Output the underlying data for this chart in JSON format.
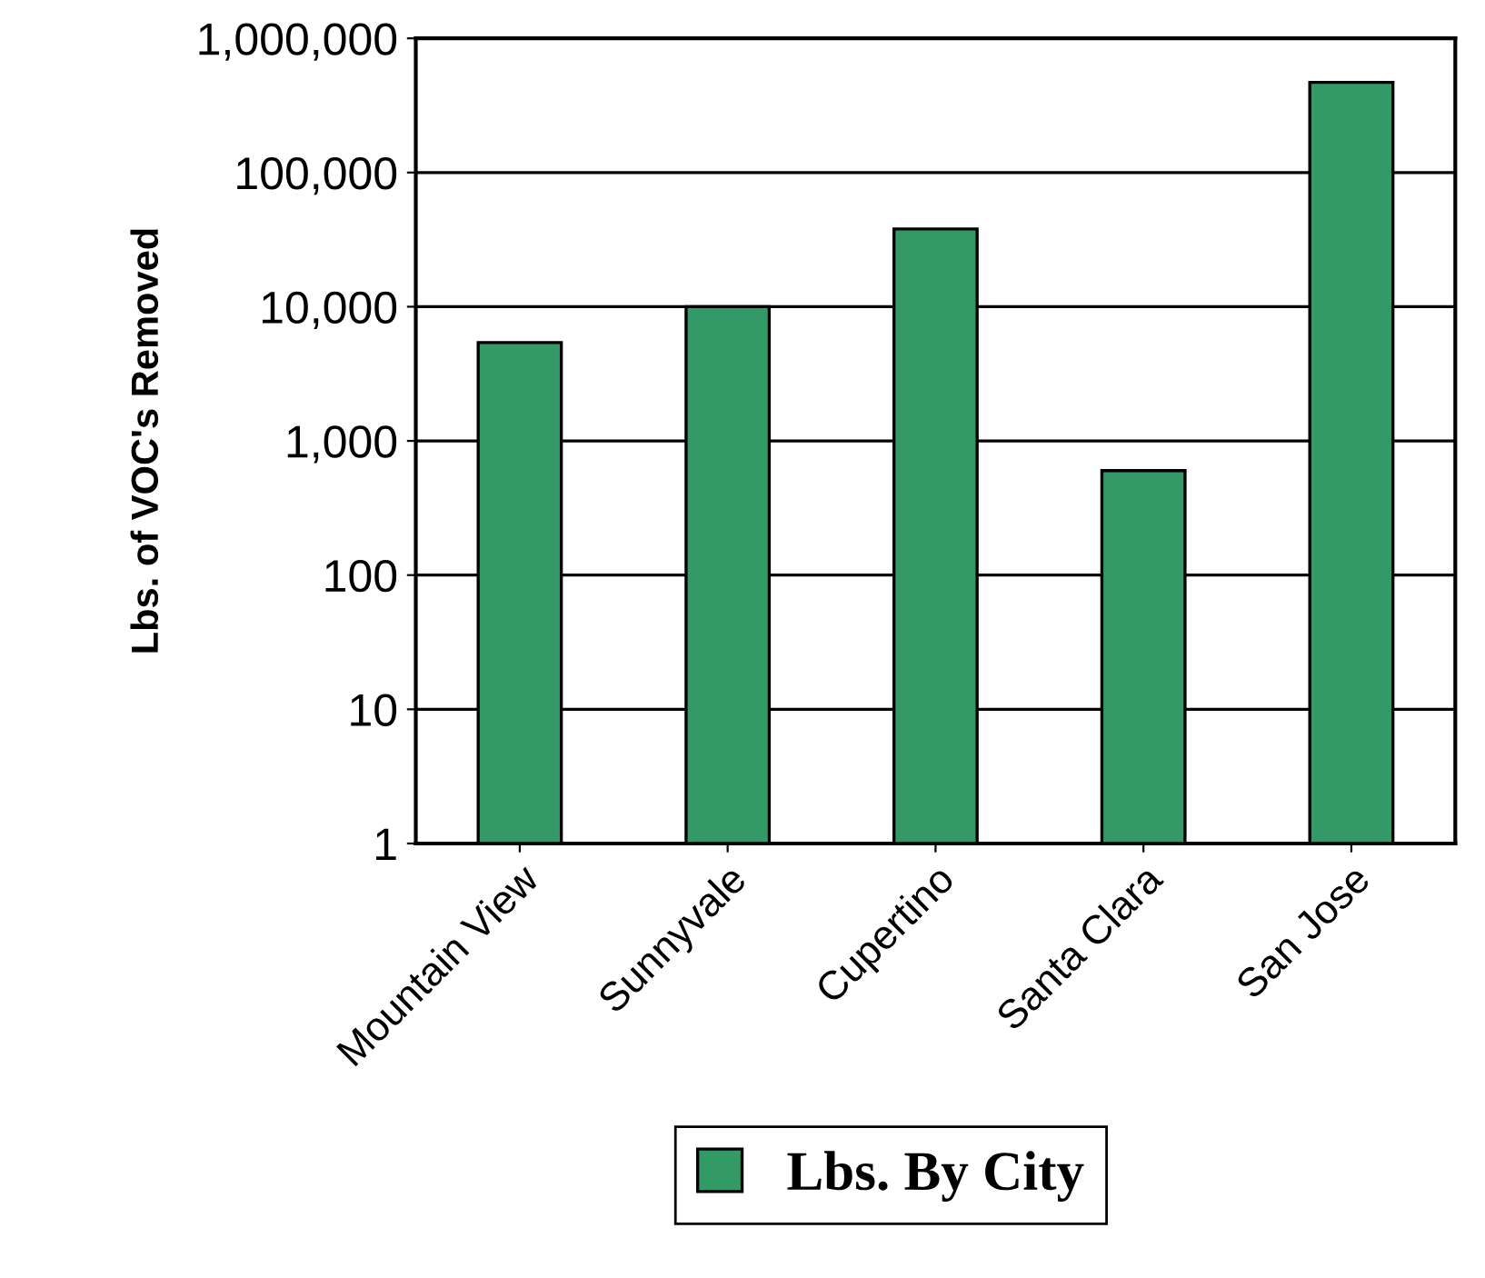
{
  "chart_data": {
    "type": "bar",
    "ylabel": "Lbs. of VOC's Removed",
    "categories": [
      "Mountain View",
      "Sunnyvale",
      "Cupertino",
      "Santa Clara",
      "San Jose"
    ],
    "series": [
      {
        "name": "Lbs. By City",
        "color": "#339966",
        "values": [
          5400,
          10000,
          38000,
          600,
          470000
        ]
      }
    ],
    "log": true,
    "ylim": [
      1,
      1000000
    ],
    "yticks": [
      1,
      10,
      100,
      {
        "value": 1000,
        "label": "1,000"
      },
      {
        "value": 10000,
        "label": "10,000"
      },
      {
        "value": 100000,
        "label": "100,000"
      },
      {
        "value": 1000000,
        "label": "1,000,000"
      }
    ],
    "grid": "y",
    "legend": "bottom"
  }
}
